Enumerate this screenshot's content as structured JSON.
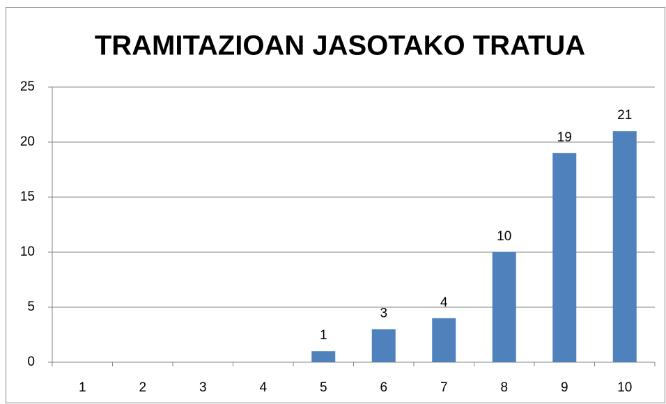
{
  "chart_data": {
    "type": "bar",
    "title": "TRAMITAZIOAN JASOTAKO TRATUA",
    "categories": [
      "1",
      "2",
      "3",
      "4",
      "5",
      "6",
      "7",
      "8",
      "9",
      "10"
    ],
    "values": [
      0,
      0,
      0,
      0,
      1,
      3,
      4,
      10,
      19,
      21
    ],
    "color": "#4f81bd",
    "ylim": [
      0,
      25
    ],
    "yticks": [
      0,
      5,
      10,
      15,
      20,
      25
    ],
    "grid": true
  }
}
